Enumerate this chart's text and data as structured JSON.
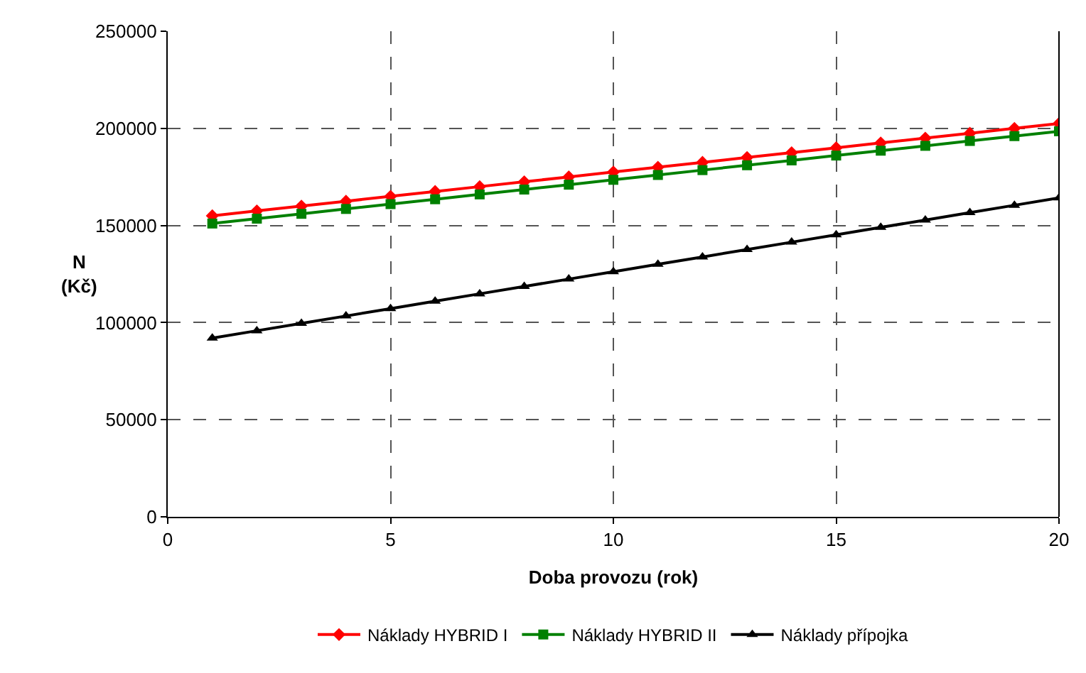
{
  "chart_data": {
    "type": "line",
    "xlabel": "Doba provozu (rok)",
    "ylabel": "N\n(Kč)",
    "x": [
      1,
      2,
      3,
      4,
      5,
      6,
      7,
      8,
      9,
      10,
      11,
      12,
      13,
      14,
      15,
      16,
      17,
      18,
      19,
      20
    ],
    "series": [
      {
        "name": "Náklady HYBRID I",
        "color": "#ff0000",
        "marker": "diamond",
        "values": [
          155000,
          157500,
          160000,
          162500,
          165000,
          167500,
          170000,
          172500,
          175000,
          177500,
          180000,
          182500,
          185000,
          187500,
          190000,
          192500,
          195000,
          197500,
          200000,
          202500
        ]
      },
      {
        "name": "Náklady HYBRID II",
        "color": "#008000",
        "marker": "square",
        "values": [
          151000,
          153500,
          156000,
          158500,
          161000,
          163500,
          166000,
          168500,
          171000,
          173500,
          176000,
          178500,
          181000,
          183500,
          186000,
          188500,
          191000,
          193500,
          196000,
          198500
        ]
      },
      {
        "name": "Náklady přípojka",
        "color": "#000000",
        "marker": "triangle",
        "values": [
          92000,
          95800,
          99600,
          103400,
          107200,
          111000,
          114800,
          118600,
          122400,
          126200,
          130000,
          133800,
          137600,
          141400,
          145200,
          149000,
          152800,
          156600,
          160400,
          164200
        ]
      }
    ],
    "xlim": [
      0,
      20
    ],
    "xticks": [
      0,
      5,
      10,
      15,
      20
    ],
    "ylim": [
      0,
      250000
    ],
    "yticks": [
      0,
      50000,
      100000,
      150000,
      200000,
      250000
    ],
    "grid": true,
    "legend": "bottom",
    "line_style": "solid"
  }
}
